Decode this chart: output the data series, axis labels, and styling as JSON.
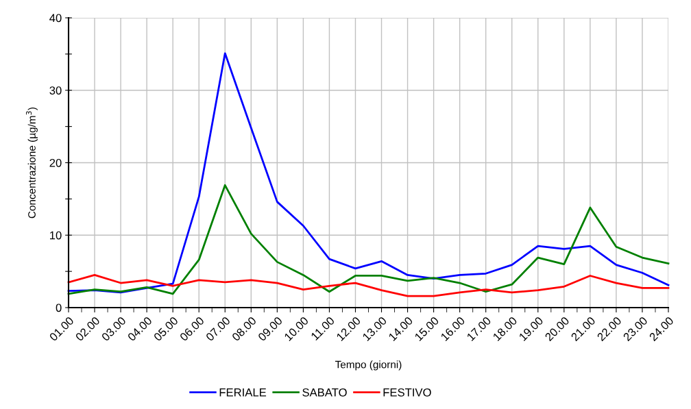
{
  "chart_data": {
    "type": "line",
    "xlabel": "Tempo (giorni)",
    "ylabel": "Concentrazione (µg/m$^{3}$)",
    "categories": [
      "01.00",
      "02.00",
      "03.00",
      "04.00",
      "05.00",
      "06.00",
      "07.00",
      "08.00",
      "09.00",
      "10.00",
      "11.00",
      "12.00",
      "13.00",
      "14.00",
      "15.00",
      "16.00",
      "17.00",
      "18.00",
      "19.00",
      "20.00",
      "21.00",
      "22.00",
      "23.00",
      "24.00"
    ],
    "series": [
      {
        "name": "FERIALE",
        "color": "#0000ff",
        "values": [
          2.3,
          2.4,
          2.1,
          2.7,
          3.3,
          15.3,
          35.1,
          24.8,
          14.6,
          11.3,
          6.7,
          5.4,
          6.4,
          4.5,
          4.0,
          4.5,
          4.7,
          5.9,
          8.5,
          8.1,
          8.5,
          5.9,
          4.8,
          3.1
        ]
      },
      {
        "name": "SABATO",
        "color": "#008000",
        "values": [
          1.9,
          2.5,
          2.2,
          2.8,
          1.9,
          6.6,
          16.9,
          10.2,
          6.3,
          4.5,
          2.2,
          4.4,
          4.4,
          3.7,
          4.1,
          3.4,
          2.2,
          3.2,
          6.9,
          6.0,
          13.8,
          8.4,
          6.9,
          6.1
        ]
      },
      {
        "name": "FESTIVO",
        "color": "#ff0000",
        "values": [
          3.5,
          4.5,
          3.4,
          3.8,
          3.0,
          3.8,
          3.5,
          3.8,
          3.4,
          2.5,
          3.0,
          3.4,
          2.4,
          1.6,
          1.6,
          2.1,
          2.5,
          2.1,
          2.4,
          2.9,
          4.4,
          3.4,
          2.7,
          2.7
        ]
      }
    ],
    "ylim": [
      0,
      40
    ],
    "yticks": [
      0,
      {
        "value": 5,
        "label": null
      },
      10,
      {
        "value": 15,
        "label": null
      },
      20,
      {
        "value": 25,
        "label": null
      },
      30,
      {
        "value": 35,
        "label": null
      },
      40
    ],
    "grid": true,
    "legend": "bottom",
    "line_style": "solid",
    "marker": "none"
  }
}
